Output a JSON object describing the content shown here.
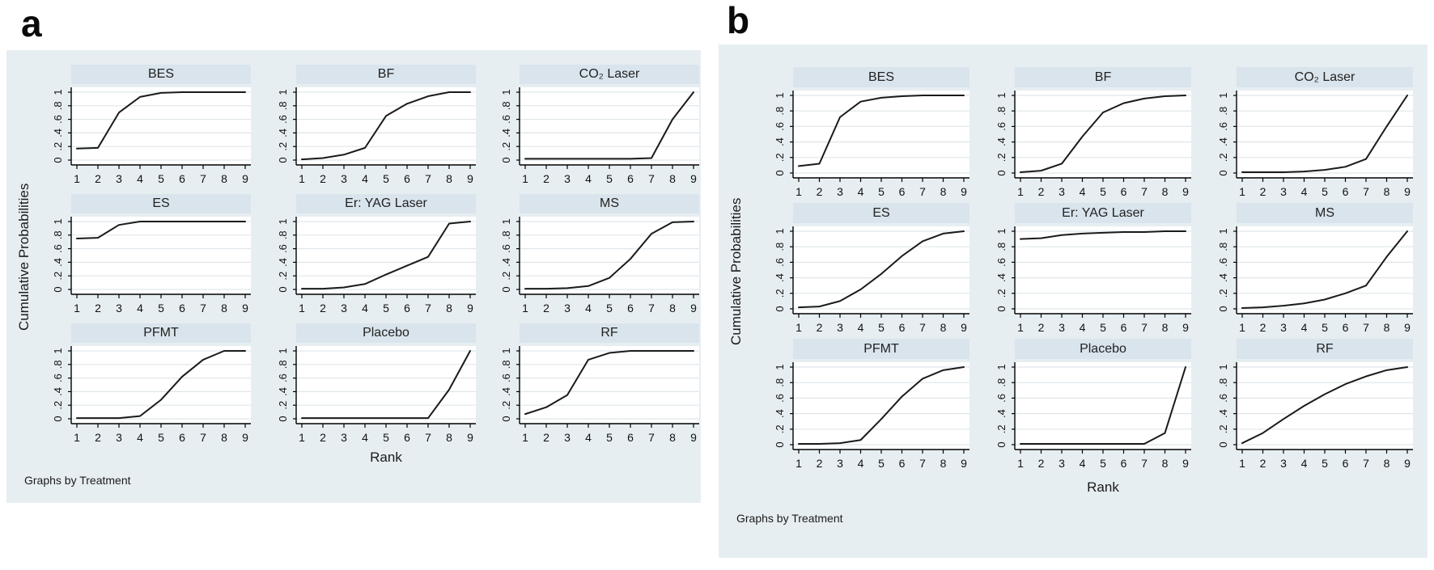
{
  "figure": {
    "panel_background": "#e7eef2",
    "title_band_color": "#d9e4ec",
    "plot_background": "#ffffff",
    "grid_color": "#dfe6ea",
    "axis_color": "#000000",
    "line_color": "#1a1a1a"
  },
  "chart_data": [
    {
      "type": "line",
      "panel_label": "a",
      "ylabel": "Cumulative Probabilities",
      "xlabel": "Rank",
      "note": "Graphs by Treatment",
      "x": [
        1,
        2,
        3,
        4,
        5,
        6,
        7,
        8,
        9
      ],
      "xticks": [
        "1",
        "2",
        "3",
        "4",
        "5",
        "6",
        "7",
        "8",
        "9"
      ],
      "yticks": [
        "0",
        ".2",
        ".4",
        ".6",
        ".8",
        "1"
      ],
      "ylim": [
        0,
        1
      ],
      "grid": true,
      "legend": "none",
      "series": [
        {
          "name": "BES",
          "values": [
            0.17,
            0.18,
            0.7,
            0.93,
            0.99,
            1,
            1,
            1,
            1
          ]
        },
        {
          "name": "BF",
          "values": [
            0.01,
            0.03,
            0.08,
            0.18,
            0.65,
            0.83,
            0.94,
            1,
            1
          ]
        },
        {
          "name": "CO₂ Laser",
          "values": [
            0.02,
            0.02,
            0.02,
            0.02,
            0.02,
            0.02,
            0.03,
            0.6,
            1
          ]
        },
        {
          "name": "ES",
          "values": [
            0.75,
            0.76,
            0.95,
            1,
            1,
            1,
            1,
            1,
            1
          ]
        },
        {
          "name": "Er: YAG Laser",
          "values": [
            0.01,
            0.01,
            0.03,
            0.08,
            0.22,
            0.35,
            0.48,
            0.97,
            1
          ]
        },
        {
          "name": "MS",
          "values": [
            0.01,
            0.01,
            0.02,
            0.05,
            0.17,
            0.45,
            0.82,
            0.99,
            1
          ]
        },
        {
          "name": "PFMT",
          "values": [
            0.01,
            0.01,
            0.01,
            0.04,
            0.28,
            0.62,
            0.87,
            1,
            1
          ]
        },
        {
          "name": "Placebo",
          "values": [
            0.01,
            0.01,
            0.01,
            0.01,
            0.01,
            0.01,
            0.01,
            0.43,
            1
          ]
        },
        {
          "name": "RF",
          "values": [
            0.07,
            0.17,
            0.35,
            0.87,
            0.97,
            1,
            1,
            1,
            1
          ]
        }
      ]
    },
    {
      "type": "line",
      "panel_label": "b",
      "ylabel": "Cumulative Probabilities",
      "xlabel": "Rank",
      "note": "Graphs by Treatment",
      "x": [
        1,
        2,
        3,
        4,
        5,
        6,
        7,
        8,
        9
      ],
      "xticks": [
        "1",
        "2",
        "3",
        "4",
        "5",
        "6",
        "7",
        "8",
        "9"
      ],
      "yticks": [
        "0",
        ".2",
        ".4",
        ".6",
        ".8",
        "1"
      ],
      "ylim": [
        0,
        1
      ],
      "grid": true,
      "legend": "none",
      "series": [
        {
          "name": "BES",
          "values": [
            0.09,
            0.12,
            0.72,
            0.92,
            0.97,
            0.99,
            1,
            1,
            1
          ]
        },
        {
          "name": "BF",
          "values": [
            0.01,
            0.03,
            0.12,
            0.47,
            0.78,
            0.9,
            0.96,
            0.99,
            1
          ]
        },
        {
          "name": "CO₂ Laser",
          "values": [
            0.01,
            0.01,
            0.01,
            0.02,
            0.04,
            0.08,
            0.18,
            0.6,
            1
          ]
        },
        {
          "name": "ES",
          "values": [
            0.02,
            0.03,
            0.1,
            0.25,
            0.45,
            0.68,
            0.87,
            0.97,
            1
          ]
        },
        {
          "name": "Er: YAG Laser",
          "values": [
            0.9,
            0.91,
            0.95,
            0.97,
            0.98,
            0.99,
            0.99,
            1,
            1
          ]
        },
        {
          "name": "MS",
          "values": [
            0.01,
            0.02,
            0.04,
            0.07,
            0.12,
            0.2,
            0.3,
            0.67,
            1
          ]
        },
        {
          "name": "PFMT",
          "values": [
            0.01,
            0.01,
            0.02,
            0.06,
            0.33,
            0.62,
            0.85,
            0.96,
            1
          ]
        },
        {
          "name": "Placebo",
          "values": [
            0.01,
            0.01,
            0.01,
            0.01,
            0.01,
            0.01,
            0.01,
            0.15,
            1
          ]
        },
        {
          "name": "RF",
          "values": [
            0.02,
            0.15,
            0.33,
            0.5,
            0.65,
            0.78,
            0.88,
            0.96,
            1
          ]
        }
      ]
    }
  ]
}
